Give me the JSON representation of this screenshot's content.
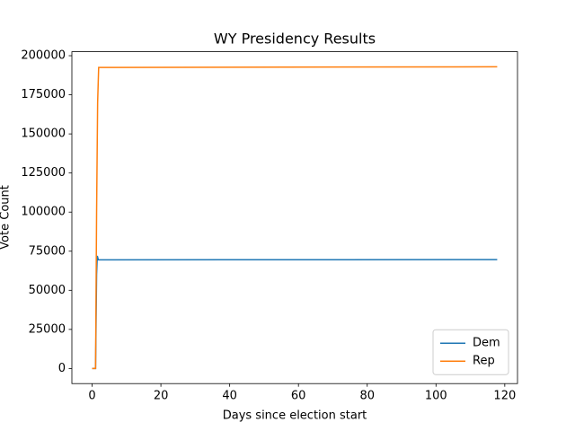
{
  "chart_data": {
    "type": "line",
    "title": "WY Presidency Results",
    "x_label": "Days since election start",
    "y_label": "Vote Count",
    "series": [
      {
        "name": "Dem",
        "color": "#1f77b4",
        "x": [
          0,
          1.0,
          1.3,
          1.5,
          1.8,
          117.8
        ],
        "values": [
          0,
          0,
          60000,
          72000,
          69500,
          69600
        ]
      },
      {
        "name": "Rep",
        "color": "#ff7f0e",
        "x": [
          0,
          1.0,
          1.3,
          1.6,
          1.9,
          117.8
        ],
        "values": [
          0,
          0,
          100000,
          170000,
          192500,
          192900
        ]
      }
    ],
    "xlim": [
      -5.89,
      123.7
    ],
    "ylim": [
      -9645,
      202545
    ],
    "xticks": [
      0,
      20,
      40,
      60,
      80,
      100,
      120
    ],
    "yticks": [
      0,
      25000,
      50000,
      75000,
      100000,
      125000,
      150000,
      175000,
      200000
    ],
    "legend": "lower right"
  }
}
